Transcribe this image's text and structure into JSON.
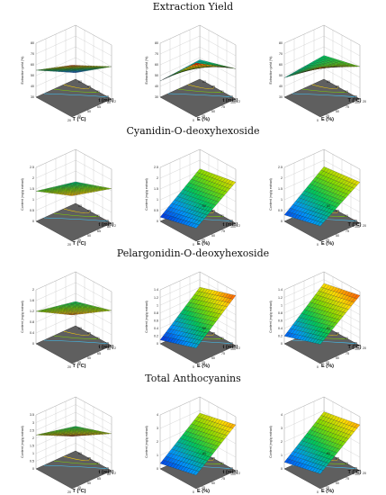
{
  "titles": [
    "Extraction Yield",
    "Cyanidin-O-deoxyhexoside",
    "Pelargonidin-O-deoxyhexoside",
    "Total Anthocyanins"
  ],
  "chart_data": [
    {
      "type": "surface3d",
      "title": "Extraction Yield",
      "xlabel": "T (°C)",
      "ylabel": "t (min)",
      "zlabel": "Extraction yield (%)",
      "x_ticks": [
        "20",
        "35",
        "50",
        "65",
        "80"
      ],
      "y_ticks": [
        "2",
        "16",
        "31",
        "45",
        "60"
      ],
      "z_ticks": [
        "80",
        "70",
        "60",
        "50",
        "40",
        "30"
      ],
      "zlim": [
        30,
        80
      ],
      "corner_values": [
        36,
        55,
        60,
        78
      ]
    },
    {
      "type": "surface3d",
      "title": "Extraction Yield",
      "xlabel": "E (%)",
      "ylabel": "t (min)",
      "zlabel": "Extraction yield (%)",
      "x_ticks": [
        "0",
        "25",
        "50",
        "75",
        "100"
      ],
      "y_ticks": [
        "2",
        "16",
        "31",
        "45",
        "60"
      ],
      "z_ticks": [
        "80",
        "70",
        "60",
        "50",
        "40",
        "30"
      ],
      "zlim": [
        30,
        80
      ],
      "corner_values": [
        48,
        45,
        58,
        80
      ]
    },
    {
      "type": "surface3d",
      "title": "Extraction Yield",
      "xlabel": "E (%)",
      "ylabel": "T (°C)",
      "zlabel": "Extraction yield (%)",
      "x_ticks": [
        "0",
        "25",
        "50",
        "75",
        "100"
      ],
      "y_ticks": [
        "20",
        "35",
        "50",
        "65",
        "80"
      ],
      "z_ticks": [
        "80",
        "70",
        "60",
        "50",
        "40",
        "30"
      ],
      "zlim": [
        30,
        80
      ],
      "corner_values": [
        52,
        48,
        60,
        76
      ]
    },
    {
      "type": "surface3d",
      "title": "Cyanidin-O-deoxyhexoside",
      "xlabel": "T (°C)",
      "ylabel": "t (min)",
      "zlabel": "Content (mg/g extract)",
      "x_ticks": [
        "20",
        "35",
        "50",
        "65",
        "80"
      ],
      "y_ticks": [
        "2",
        "16",
        "31",
        "45",
        "60"
      ],
      "z_ticks": [
        "2.5",
        "2",
        "1.5",
        "1",
        "0.5",
        "0"
      ],
      "zlim": [
        0,
        2.5
      ],
      "corner_values": [
        1.0,
        1.4,
        1.6,
        2.1
      ]
    },
    {
      "type": "surface3d",
      "title": "Cyanidin-O-deoxyhexoside",
      "xlabel": "E (%)",
      "ylabel": "t (min)",
      "zlabel": "Content (mg/g extract)",
      "x_ticks": [
        "0",
        "25",
        "50",
        "75",
        "100"
      ],
      "y_ticks": [
        "2",
        "16",
        "31",
        "45",
        "60"
      ],
      "z_ticks": [
        "2.5",
        "2",
        "1.5",
        "1",
        "0.5",
        "0"
      ],
      "zlim": [
        0,
        2.5
      ],
      "corner_values": [
        1.6,
        0.2,
        1.9,
        0.6
      ]
    },
    {
      "type": "surface3d",
      "title": "Cyanidin-O-deoxyhexoside",
      "xlabel": "E (%)",
      "ylabel": "T (°C)",
      "zlabel": "Content (mg/g extract)",
      "x_ticks": [
        "0",
        "25",
        "50",
        "75",
        "100"
      ],
      "y_ticks": [
        "20",
        "35",
        "50",
        "65",
        "80"
      ],
      "z_ticks": [
        "2.5",
        "2",
        "1.5",
        "1",
        "0.5",
        "0"
      ],
      "zlim": [
        0,
        2.5
      ],
      "corner_values": [
        1.7,
        0.3,
        1.9,
        0.7
      ]
    },
    {
      "type": "surface3d",
      "title": "Pelargonidin-O-deoxyhexoside",
      "xlabel": "T (°C)",
      "ylabel": "t (min)",
      "zlabel": "Content (mg/g extract)",
      "x_ticks": [
        "20",
        "35",
        "50",
        "65",
        "80"
      ],
      "y_ticks": [
        "2",
        "16",
        "31",
        "45",
        "60"
      ],
      "z_ticks": [
        "2",
        "1.6",
        "1.2",
        "0.8",
        "0.4",
        "0"
      ],
      "zlim": [
        0,
        2
      ],
      "corner_values": [
        0.9,
        1.2,
        1.3,
        1.8
      ]
    },
    {
      "type": "surface3d",
      "title": "Pelargonidin-O-deoxyhexoside",
      "xlabel": "E (%)",
      "ylabel": "t (min)",
      "zlabel": "Content (mg/g extract)",
      "x_ticks": [
        "0",
        "25",
        "50",
        "75",
        "100"
      ],
      "y_ticks": [
        "2",
        "16",
        "31",
        "45",
        "60"
      ],
      "z_ticks": [
        "1.4",
        "1.2",
        "1",
        "0.8",
        "0.6",
        "0.4",
        "0.2",
        "0"
      ],
      "zlim": [
        0,
        1.4
      ],
      "corner_values": [
        1.0,
        0.1,
        1.3,
        0.4
      ]
    },
    {
      "type": "surface3d",
      "title": "Pelargonidin-O-deoxyhexoside",
      "xlabel": "E (%)",
      "ylabel": "T (°C)",
      "zlabel": "Content (mg/g extract)",
      "x_ticks": [
        "0",
        "25",
        "50",
        "75",
        "100"
      ],
      "y_ticks": [
        "20",
        "35",
        "50",
        "65",
        "80"
      ],
      "z_ticks": [
        "1.4",
        "1.2",
        "1",
        "0.8",
        "0.6",
        "0.4",
        "0.2",
        "0"
      ],
      "zlim": [
        0,
        1.4
      ],
      "corner_values": [
        1.1,
        0.2,
        1.3,
        0.5
      ]
    },
    {
      "type": "surface3d",
      "title": "Total Anthocyanins",
      "xlabel": "T (°C)",
      "ylabel": "t (min)",
      "zlabel": "Content (mg/g extract)",
      "x_ticks": [
        "20",
        "35",
        "50",
        "65",
        "80"
      ],
      "y_ticks": [
        "2",
        "16",
        "31",
        "45",
        "60"
      ],
      "z_ticks": [
        "3.5",
        "3",
        "2.5",
        "2",
        "1.5",
        "1",
        "0.5",
        "0"
      ],
      "zlim": [
        0,
        3.5
      ],
      "corner_values": [
        1.6,
        2.2,
        2.4,
        3.4
      ]
    },
    {
      "type": "surface3d",
      "title": "Total Anthocyanins",
      "xlabel": "E (%)",
      "ylabel": "t (min)",
      "zlabel": "Content (mg/g extract)",
      "x_ticks": [
        "0",
        "25",
        "50",
        "75",
        "100"
      ],
      "y_ticks": [
        "2",
        "16",
        "31",
        "45",
        "60"
      ],
      "z_ticks": [
        "4",
        "3",
        "2",
        "1",
        "0"
      ],
      "zlim": [
        0,
        4
      ],
      "corner_values": [
        2.8,
        0.4,
        3.4,
        1.0
      ]
    },
    {
      "type": "surface3d",
      "title": "Total Anthocyanins",
      "xlabel": "E (%)",
      "ylabel": "T (°C)",
      "zlabel": "Content (mg/g extract)",
      "x_ticks": [
        "0",
        "25",
        "50",
        "75",
        "100"
      ],
      "y_ticks": [
        "20",
        "35",
        "50",
        "65",
        "80"
      ],
      "z_ticks": [
        "4",
        "3",
        "2",
        "1",
        "0"
      ],
      "zlim": [
        0,
        4
      ],
      "corner_values": [
        2.9,
        0.5,
        3.4,
        1.1
      ]
    }
  ]
}
